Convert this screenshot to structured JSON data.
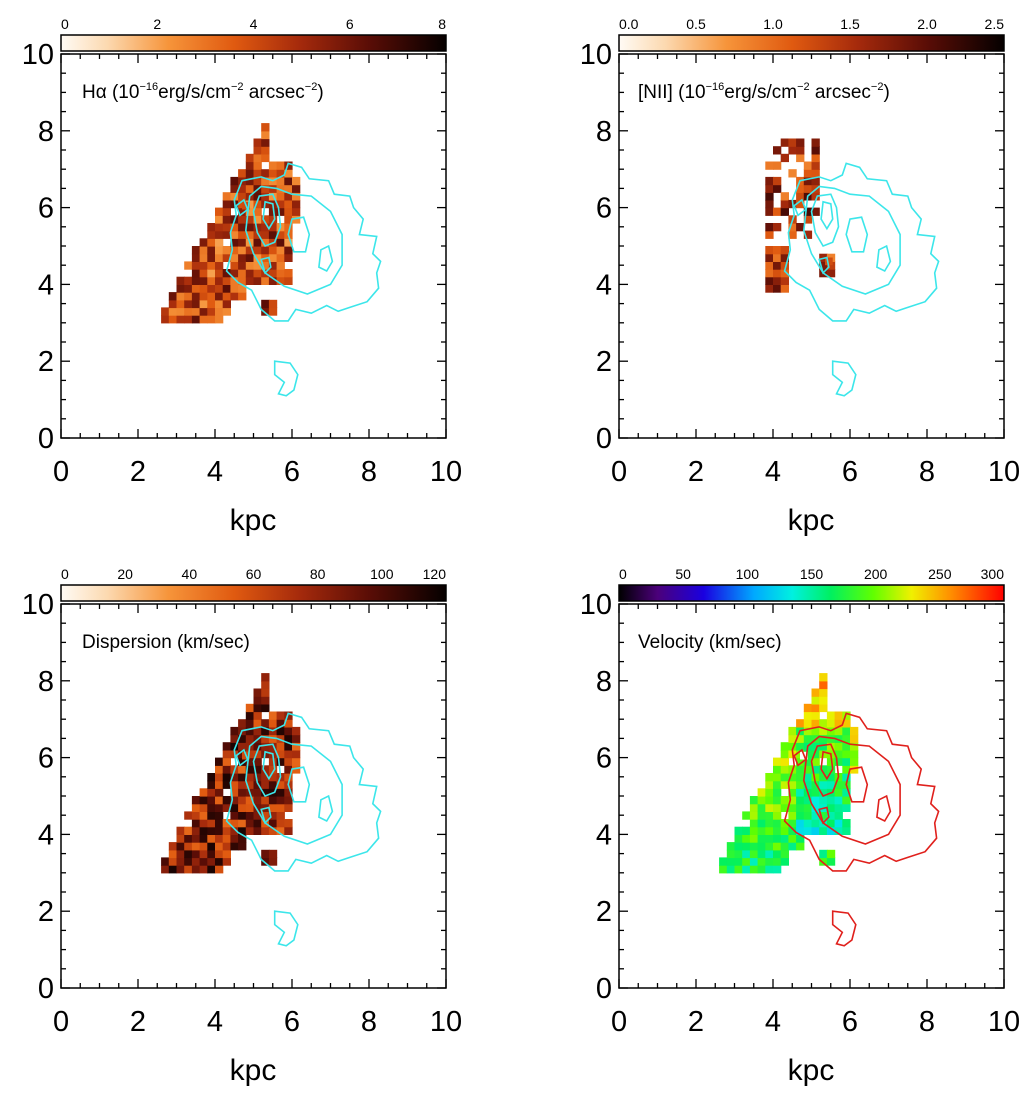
{
  "chart_data": [
    {
      "type": "heatmap",
      "panel": "halpha",
      "label_parts": [
        "Hα (10",
        "−16",
        "erg/s/cm",
        "−2",
        " arcsec",
        "−2",
        ")"
      ],
      "colorbar": {
        "colormap": "heat",
        "range": [
          0,
          8
        ],
        "ticks": [
          "0",
          "2",
          "4",
          "6",
          "8"
        ]
      },
      "xlabel": "kpc",
      "ylabel": "",
      "xlim": [
        0,
        10
      ],
      "ylim": [
        0,
        10
      ],
      "x_ticks": [
        "0",
        "2",
        "4",
        "6",
        "8",
        "10"
      ],
      "y_ticks": [
        "0",
        "2",
        "4",
        "6",
        "8",
        "10"
      ],
      "contour_color": "#3ce6ea",
      "ref_pixel": [
        4.7,
        5.95
      ]
    },
    {
      "type": "heatmap",
      "panel": "nii",
      "label_parts": [
        "[NII] (10",
        "−16",
        "erg/s/cm",
        "−2",
        " arcsec",
        "−2",
        ")"
      ],
      "colorbar": {
        "colormap": "heat",
        "range": [
          0,
          2.5
        ],
        "ticks": [
          "0.0",
          "0.5",
          "1.0",
          "1.5",
          "2.0",
          "2.5"
        ]
      },
      "xlabel": "kpc",
      "ylabel": "",
      "xlim": [
        0,
        10
      ],
      "ylim": [
        0,
        10
      ],
      "x_ticks": [
        "0",
        "2",
        "4",
        "6",
        "8",
        "10"
      ],
      "y_ticks": [
        "0",
        "2",
        "4",
        "6",
        "8",
        "10"
      ],
      "contour_color": "#3ce6ea",
      "ref_pixel": [
        5.35,
        4.5
      ]
    },
    {
      "type": "heatmap",
      "panel": "dispersion",
      "label_parts": [
        "Dispersion (km/sec)"
      ],
      "colorbar": {
        "colormap": "heat",
        "range": [
          0,
          130
        ],
        "ticks": [
          "0",
          "20",
          "40",
          "60",
          "80",
          "100",
          "120"
        ]
      },
      "xlabel": "kpc",
      "ylabel": "",
      "xlim": [
        0,
        10
      ],
      "ylim": [
        0,
        10
      ],
      "x_ticks": [
        "0",
        "2",
        "4",
        "6",
        "8",
        "10"
      ],
      "y_ticks": [
        "0",
        "2",
        "4",
        "6",
        "8",
        "10"
      ],
      "contour_color": "#3ce6ea",
      "ref_pixel": [
        4.7,
        5.95
      ]
    },
    {
      "type": "heatmap",
      "panel": "velocity",
      "label_parts": [
        "Velocity (km/sec)"
      ],
      "colorbar": {
        "colormap": "rainbow",
        "range": [
          0,
          300
        ],
        "ticks": [
          "0",
          "50",
          "100",
          "150",
          "200",
          "250",
          "300"
        ]
      },
      "xlabel": "kpc",
      "ylabel": "",
      "xlim": [
        0,
        10
      ],
      "ylim": [
        0,
        10
      ],
      "x_ticks": [
        "0",
        "2",
        "4",
        "6",
        "8",
        "10"
      ],
      "y_ticks": [
        "0",
        "2",
        "4",
        "6",
        "8",
        "10"
      ],
      "contour_color": "#e0201c",
      "ref_pixel": [
        4.7,
        5.95
      ]
    }
  ]
}
